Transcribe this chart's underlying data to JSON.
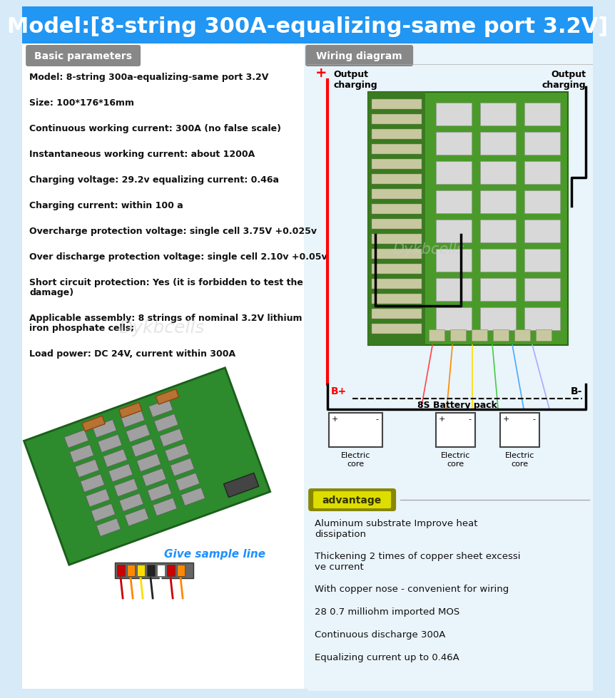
{
  "title": "Model:[8-string 300A-equalizing-same port 3.2V]",
  "title_bg": "#2196F3",
  "title_color": "#FFFFFF",
  "title_fontsize": 22,
  "bg_color": "#D6EAF8",
  "basic_params_label": "Basic parameters",
  "wiring_label": "Wiring diagram",
  "advantage_label": "advantage",
  "advantage_label_bg": "#C8C800",
  "advantage_label_color": "#DDDD00",
  "params": [
    "Model: 8-string 300a-equalizing-same port 3.2V",
    "Size: 100*176*16mm",
    "Continuous working current: 300A (no false scale)",
    "Instantaneous working current: about 1200A",
    "Charging voltage: 29.2v equalizing current: 0.46a",
    "Charging current: within 100 a",
    "Overcharge protection voltage: single cell 3.75V +0.025v",
    "Over discharge protection voltage: single cell 2.10v +0.05v",
    "Short circuit protection: Yes (it is forbidden to test the\ndamage)",
    "Applicable assembly: 8 strings of nominal 3.2V lithium\niron phosphate cells;",
    "Load power: DC 24V, current within 300A"
  ],
  "advantages": [
    "Aluminum substrate Improve heat\ndissipation",
    "Thickening 2 times of copper sheet excessi\nve current",
    "With copper nose - convenient for wiring",
    "28 0.7 milliohm imported MOS",
    "Continuous discharge 300A",
    "Equalizing current up to 0.46A"
  ],
  "give_sample": "Give sample line",
  "give_sample_color": "#1E90FF",
  "watermark_left": "Dykbcells",
  "watermark_right": "Dykbcells"
}
